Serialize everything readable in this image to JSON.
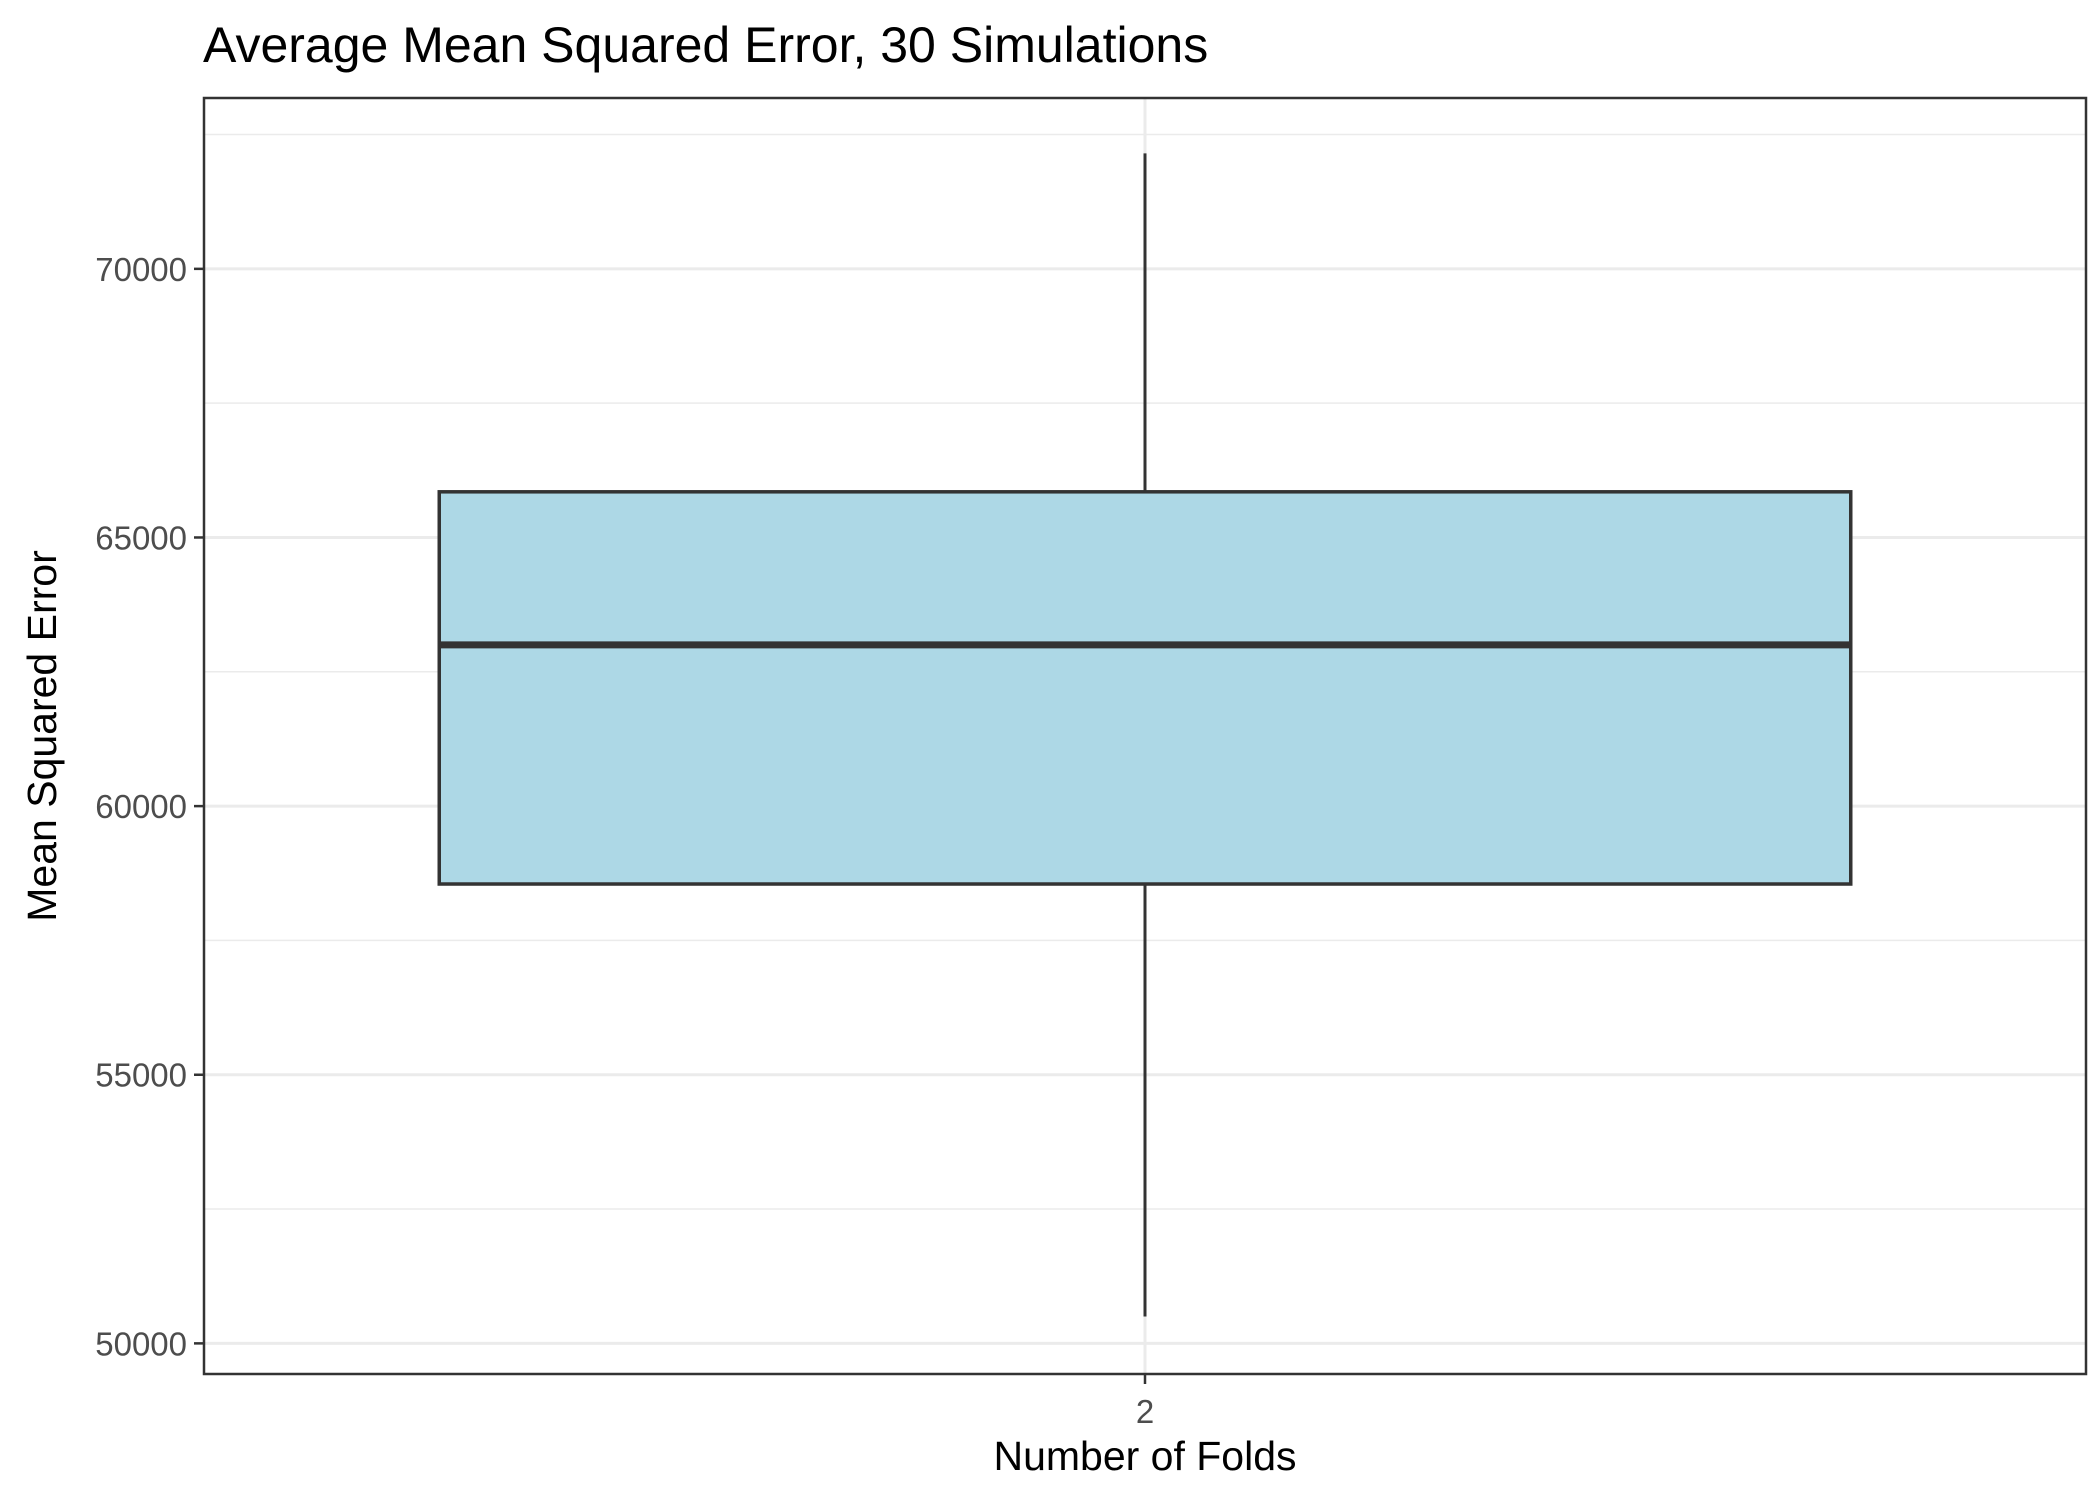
{
  "chart_data": {
    "type": "box",
    "title": "Average Mean Squared Error, 30 Simulations",
    "xlabel": "Number of Folds",
    "ylabel": "Mean Squared Error",
    "categories": [
      "2"
    ],
    "boxes": [
      {
        "category": "2",
        "whisker_low": 50500,
        "q1": 58550,
        "median": 63000,
        "q3": 65850,
        "whisker_high": 72150
      }
    ],
    "yticks": [
      50000,
      55000,
      60000,
      65000,
      70000
    ],
    "ytick_labels": [
      "50000",
      "55000",
      "60000",
      "65000",
      "70000"
    ],
    "ylim": [
      49430,
      73180
    ],
    "grid": true,
    "legend": "none",
    "colors": {
      "box_fill": "#ADD8E6",
      "box_stroke": "#333333",
      "grid": "#ebebeb",
      "panel_border": "#333333"
    }
  }
}
